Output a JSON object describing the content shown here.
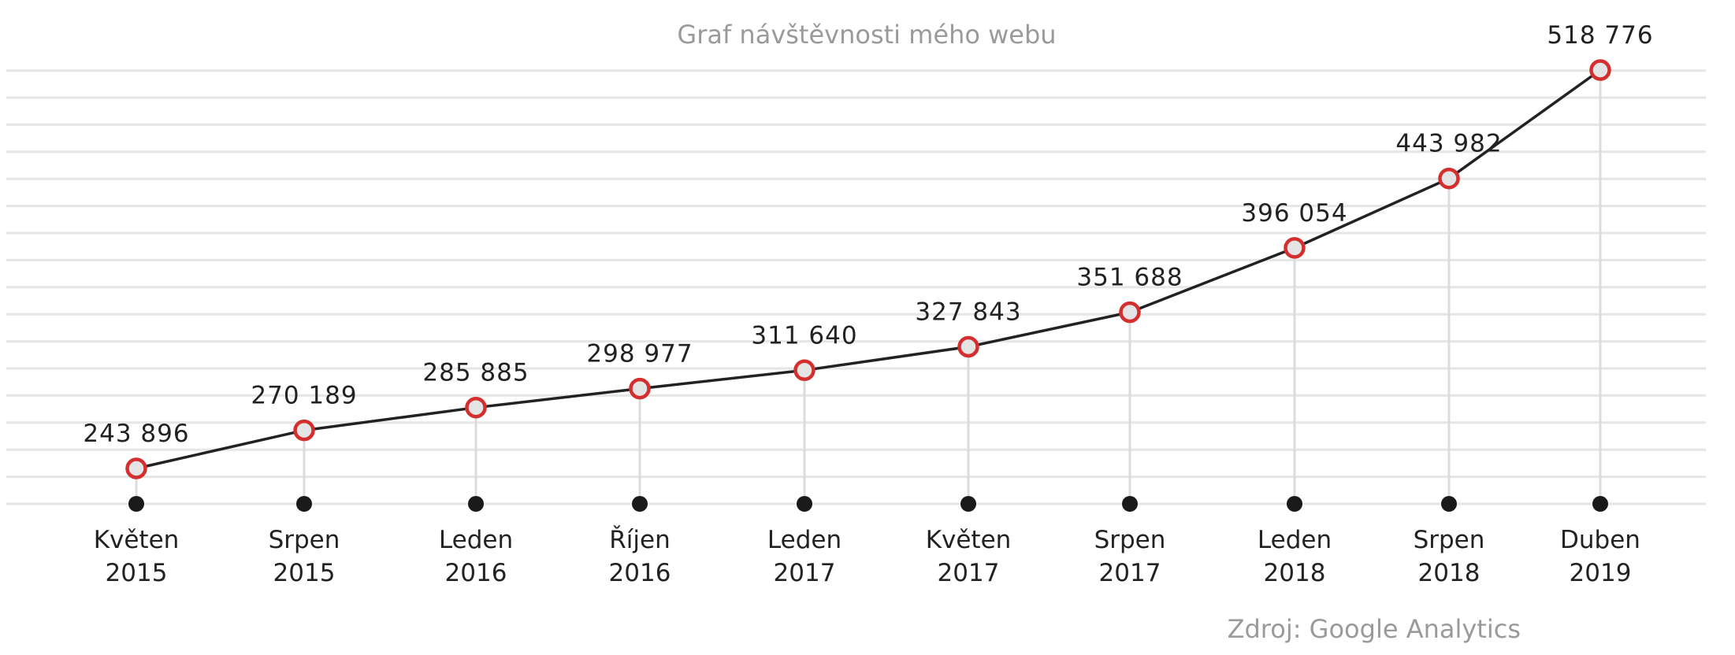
{
  "chart_data": {
    "type": "line",
    "title": "Graf návštěvnosti mého webu",
    "source": "Zdroj: Google Analytics",
    "categories": [
      [
        "Květen",
        "2015"
      ],
      [
        "Srpen",
        "2015"
      ],
      [
        "Leden",
        "2016"
      ],
      [
        "Říjen",
        "2016"
      ],
      [
        "Leden",
        "2017"
      ],
      [
        "Květen",
        "2017"
      ],
      [
        "Srpen",
        "2017"
      ],
      [
        "Leden",
        "2018"
      ],
      [
        "Srpen",
        "2018"
      ],
      [
        "Duben",
        "2019"
      ]
    ],
    "x": [
      "2015-05",
      "2015-08",
      "2016-01",
      "2016-10",
      "2017-01",
      "2017-05",
      "2017-08",
      "2018-01",
      "2018-08",
      "2019-04"
    ],
    "values": [
      243896,
      270189,
      285885,
      298977,
      311640,
      327843,
      351688,
      396054,
      443982,
      518776
    ],
    "value_labels": [
      "243 896",
      "270 189",
      "285 885",
      "298 977",
      "311 640",
      "327 843",
      "351 688",
      "396 054",
      "443 982",
      "518 776"
    ],
    "xlabel": "",
    "ylabel": "",
    "grid": true,
    "colors": {
      "line": "#222222",
      "marker_stroke": "#d32f2f",
      "marker_fill": "#e4e4e4",
      "grid": "#e6e6e6",
      "drop_line": "#dcdcdc",
      "base_dot": "#1a1a1a"
    }
  }
}
